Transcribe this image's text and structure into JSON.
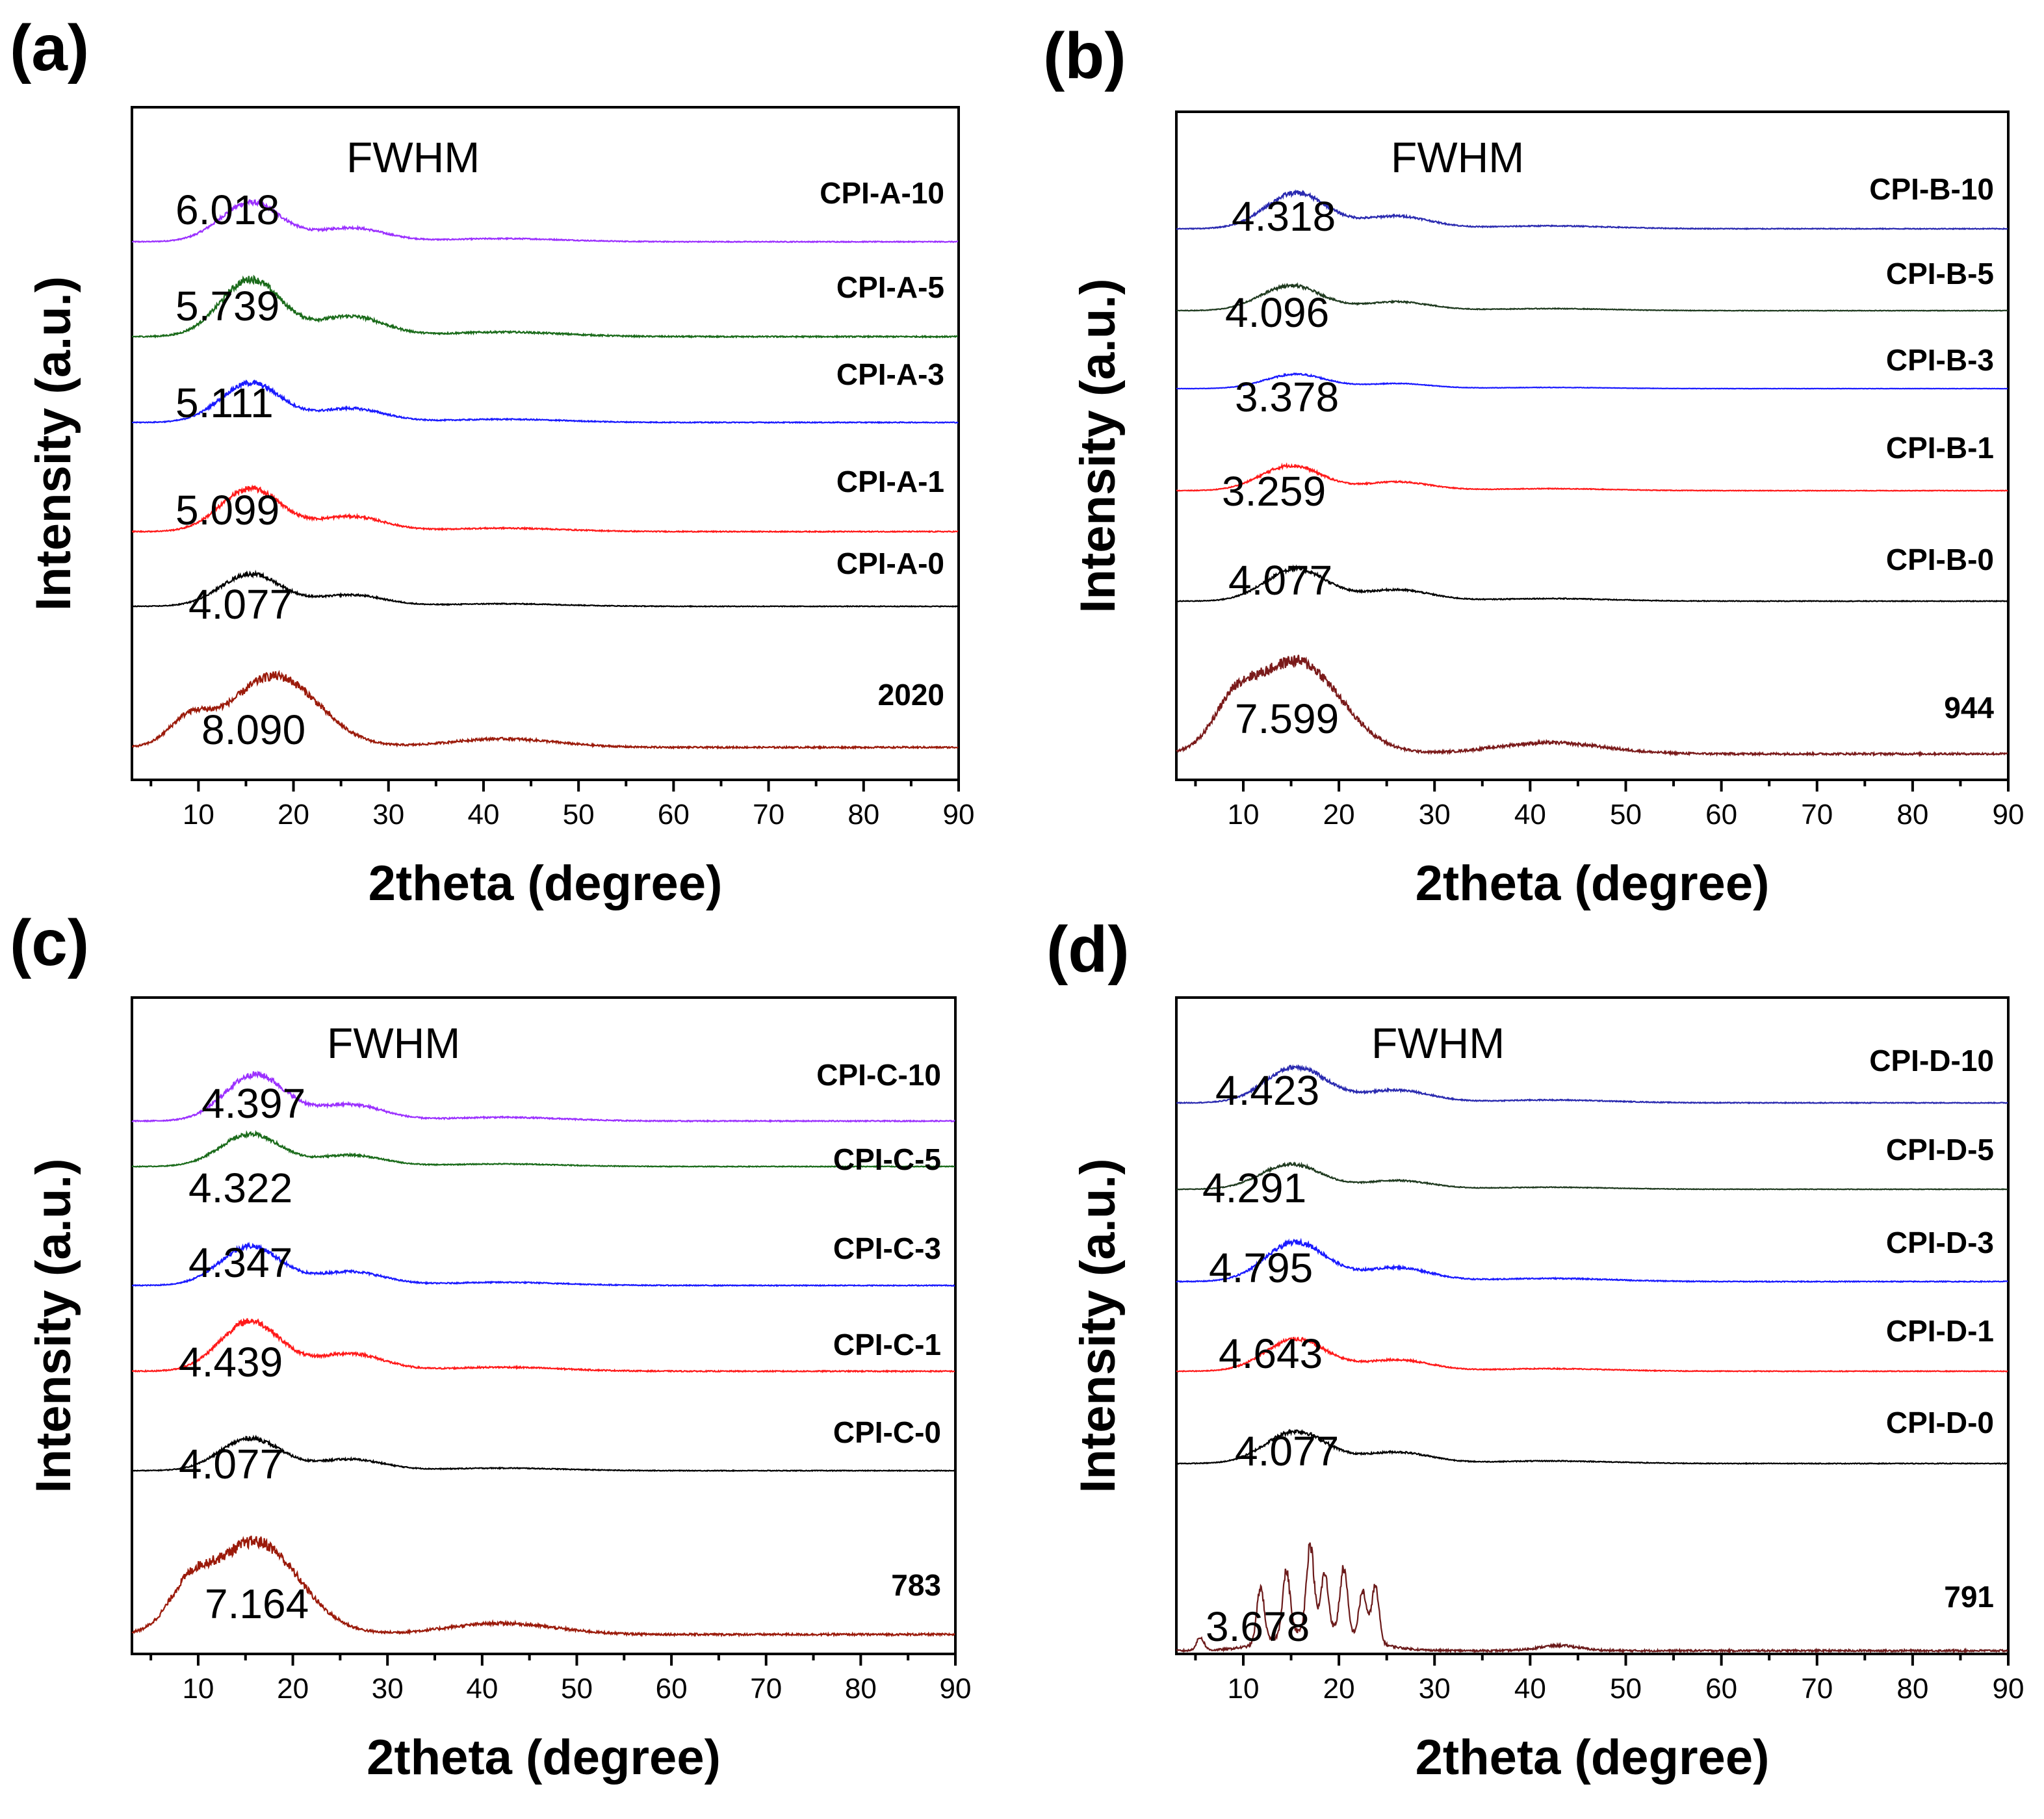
{
  "chart_data": [
    {
      "panel": "(a)",
      "type": "line",
      "xlabel": "2theta (degree)",
      "ylabel": "Intensity (a.u.)",
      "xlim": [
        3,
        90
      ],
      "xticks": [
        10,
        20,
        30,
        40,
        50,
        60,
        70,
        80,
        90
      ],
      "annotation": "FWHM",
      "series": [
        {
          "name": "CPI-A-10",
          "fwhm": "6.018",
          "color": "#9b30ff",
          "peak": 15.5,
          "shape": "amorphous",
          "amplitude": 0.55
        },
        {
          "name": "CPI-A-5",
          "fwhm": "5.739",
          "color": "#1a6b1a",
          "peak": 15.5,
          "shape": "amorphous",
          "amplitude": 0.8
        },
        {
          "name": "CPI-A-3",
          "fwhm": "5.111",
          "color": "#1a1aff",
          "peak": 15.5,
          "shape": "amorphous",
          "amplitude": 0.55
        },
        {
          "name": "CPI-A-1",
          "fwhm": "5.099",
          "color": "#ff1a1a",
          "peak": 15.5,
          "shape": "amorphous",
          "amplitude": 0.6
        },
        {
          "name": "CPI-A-0",
          "fwhm": "4.077",
          "color": "#000000",
          "peak": 15.5,
          "shape": "amorphous",
          "amplitude": 0.45
        },
        {
          "name": "2020",
          "fwhm": "8.090",
          "color": "#9b1a0a",
          "peak": 18,
          "shape": "broad",
          "amplitude": 1.0
        }
      ]
    },
    {
      "panel": "(b)",
      "type": "line",
      "xlabel": "2theta (degree)",
      "ylabel": "Intensity (a.u.)",
      "xlim": [
        3,
        90
      ],
      "xticks": [
        10,
        20,
        30,
        40,
        50,
        60,
        70,
        80,
        90
      ],
      "annotation": "FWHM",
      "series": [
        {
          "name": "CPI-B-10",
          "fwhm": "4.318",
          "color": "#2a2ab0",
          "peak": 15.5,
          "shape": "amorphous",
          "amplitude": 0.5
        },
        {
          "name": "CPI-B-5",
          "fwhm": "4.096",
          "color": "#1f3a1f",
          "peak": 15,
          "shape": "amorphous",
          "amplitude": 0.35
        },
        {
          "name": "CPI-B-3",
          "fwhm": "3.378",
          "color": "#1a1aff",
          "peak": 15.5,
          "shape": "amorphous",
          "amplitude": 0.2
        },
        {
          "name": "CPI-B-1",
          "fwhm": "3.259",
          "color": "#ff1a1a",
          "peak": 15,
          "shape": "amorphous",
          "amplitude": 0.35
        },
        {
          "name": "CPI-B-0",
          "fwhm": "4.077",
          "color": "#000000",
          "peak": 15.5,
          "shape": "amorphous",
          "amplitude": 0.45
        },
        {
          "name": "944",
          "fwhm": "7.599",
          "color": "#7a1a1a",
          "peak": 15.5,
          "shape": "broad",
          "amplitude": 1.3
        }
      ]
    },
    {
      "panel": "(c)",
      "type": "line",
      "xlabel": "2theta (degree)",
      "ylabel": "Intensity (a.u.)",
      "xlim": [
        3,
        90
      ],
      "xticks": [
        10,
        20,
        30,
        40,
        50,
        60,
        70,
        80,
        90
      ],
      "annotation": "FWHM",
      "series": [
        {
          "name": "CPI-C-10",
          "fwhm": "4.397",
          "color": "#9b30ff",
          "peak": 16,
          "shape": "amorphous",
          "amplitude": 0.65
        },
        {
          "name": "CPI-C-5",
          "fwhm": "4.322",
          "color": "#1a6b1a",
          "peak": 15.5,
          "shape": "amorphous",
          "amplitude": 0.45
        },
        {
          "name": "CPI-C-3",
          "fwhm": "4.347",
          "color": "#1a1aff",
          "peak": 15.5,
          "shape": "amorphous",
          "amplitude": 0.55
        },
        {
          "name": "CPI-C-1",
          "fwhm": "4.439",
          "color": "#ff1a1a",
          "peak": 15.5,
          "shape": "amorphous",
          "amplitude": 0.7
        },
        {
          "name": "CPI-C-0",
          "fwhm": "4.077",
          "color": "#000000",
          "peak": 15.5,
          "shape": "amorphous",
          "amplitude": 0.45
        },
        {
          "name": "783",
          "fwhm": "7.164",
          "color": "#9b1a0a",
          "peak": 16,
          "shape": "broad",
          "amplitude": 1.3
        }
      ]
    },
    {
      "panel": "(d)",
      "type": "line",
      "xlabel": "2theta (degree)",
      "ylabel": "Intensity (a.u.)",
      "xlim": [
        3,
        90
      ],
      "xticks": [
        10,
        20,
        30,
        40,
        50,
        60,
        70,
        80,
        90
      ],
      "annotation": "FWHM",
      "series": [
        {
          "name": "CPI-D-10",
          "fwhm": "4.423",
          "color": "#2a2ab0",
          "peak": 15.5,
          "shape": "amorphous",
          "amplitude": 0.5
        },
        {
          "name": "CPI-D-5",
          "fwhm": "4.291",
          "color": "#1f3a1f",
          "peak": 15,
          "shape": "amorphous",
          "amplitude": 0.35
        },
        {
          "name": "CPI-D-3",
          "fwhm": "4.795",
          "color": "#1a1aff",
          "peak": 15.5,
          "shape": "amorphous",
          "amplitude": 0.55
        },
        {
          "name": "CPI-D-1",
          "fwhm": "4.643",
          "color": "#ff1a1a",
          "peak": 15.5,
          "shape": "amorphous",
          "amplitude": 0.45
        },
        {
          "name": "CPI-D-0",
          "fwhm": "4.077",
          "color": "#000000",
          "peak": 15.5,
          "shape": "amorphous",
          "amplitude": 0.45
        },
        {
          "name": "791",
          "fwhm": "3.678",
          "color": "#6b1a1a",
          "peak": 17,
          "shape": "crystalline",
          "amplitude": 1.2,
          "sharp_peaks": [
            5.5,
            11.8,
            14.5,
            17.0,
            18.5,
            20.5,
            22.5,
            23.8
          ]
        }
      ]
    }
  ]
}
